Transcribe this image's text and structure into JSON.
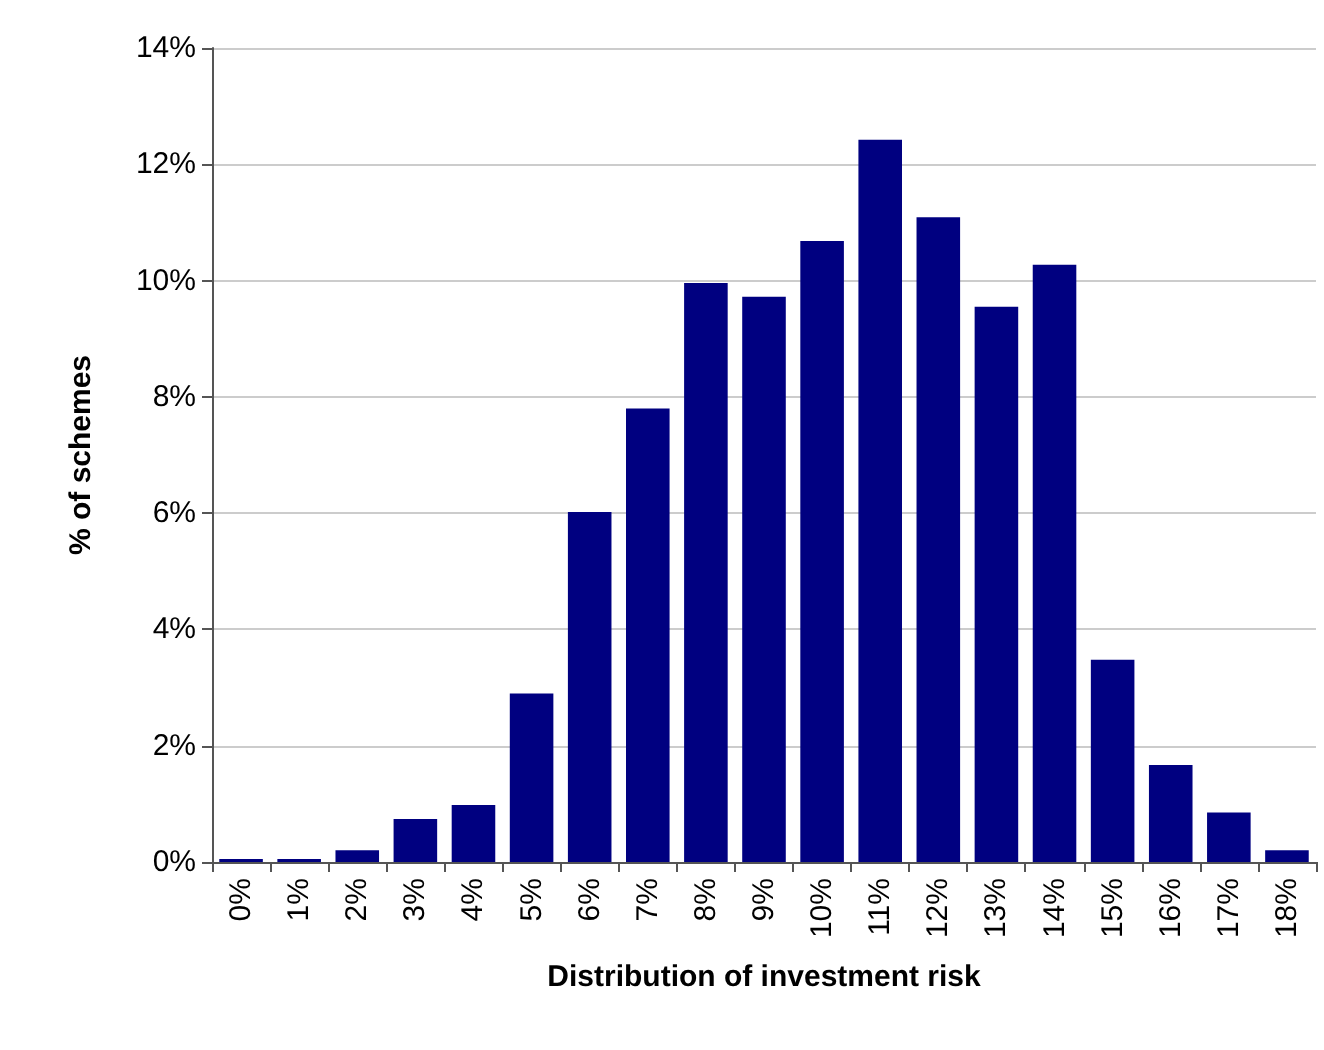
{
  "chart_data": {
    "type": "bar",
    "xlabel": "Distribution of investment risk",
    "ylabel": "% of schemes",
    "categories": [
      "0%",
      "1%",
      "2%",
      "3%",
      "4%",
      "5%",
      "6%",
      "7%",
      "8%",
      "9%",
      "10%",
      "11%",
      "12%",
      "13%",
      "14%",
      "15%",
      "16%",
      "17%",
      "18%"
    ],
    "series": [
      {
        "color": "#000080",
        "values": [
          0.05,
          0.05,
          0.2,
          0.74,
          0.98,
          2.9,
          6.02,
          7.8,
          9.96,
          9.72,
          10.68,
          12.42,
          11.09,
          9.55,
          10.27,
          3.48,
          1.67,
          0.85,
          0.2
        ]
      }
    ],
    "ylim": [
      0,
      14
    ],
    "yticks": [
      {
        "value": 0,
        "label": "0%"
      },
      {
        "value": 2,
        "label": "2%"
      },
      {
        "value": 4,
        "label": "4%"
      },
      {
        "value": 6,
        "label": "6%"
      },
      {
        "value": 8,
        "label": "8%"
      },
      {
        "value": 10,
        "label": "10%"
      },
      {
        "value": 12,
        "label": "12%"
      },
      {
        "value": 14,
        "label": "14%"
      }
    ],
    "grid": "y"
  }
}
